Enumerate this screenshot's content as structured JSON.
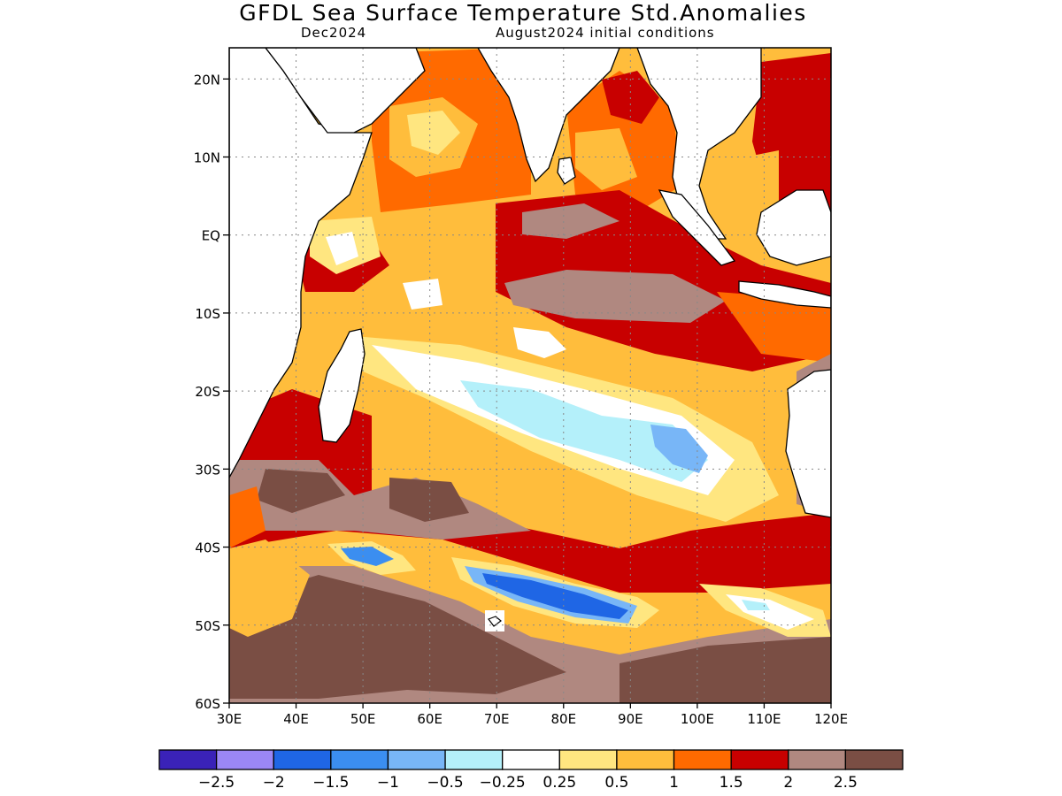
{
  "header": {
    "title": "GFDL Sea Surface Temperature Std.Anomalies",
    "valid_month": "Dec2024",
    "init": "August2024 initial conditions"
  },
  "map": {
    "lon_range": [
      30,
      120
    ],
    "lat_range": [
      -60,
      24
    ],
    "lat_ticks": [
      {
        "v": 20,
        "label": "20N"
      },
      {
        "v": 10,
        "label": "10N"
      },
      {
        "v": 0,
        "label": "EQ"
      },
      {
        "v": -10,
        "label": "10S"
      },
      {
        "v": -20,
        "label": "20S"
      },
      {
        "v": -30,
        "label": "30S"
      },
      {
        "v": -40,
        "label": "40S"
      },
      {
        "v": -50,
        "label": "50S"
      },
      {
        "v": -60,
        "label": "60S"
      }
    ],
    "lon_ticks": [
      {
        "v": 30,
        "label": "30E"
      },
      {
        "v": 40,
        "label": "40E"
      },
      {
        "v": 50,
        "label": "50E"
      },
      {
        "v": 60,
        "label": "60E"
      },
      {
        "v": 70,
        "label": "70E"
      },
      {
        "v": 80,
        "label": "80E"
      },
      {
        "v": 90,
        "label": "90E"
      },
      {
        "v": 100,
        "label": "100E"
      },
      {
        "v": 110,
        "label": "110E"
      },
      {
        "v": 120,
        "label": "120E"
      }
    ]
  },
  "colorbar": {
    "colors": [
      "#3a22b8",
      "#9b87f5",
      "#1f66e5",
      "#3b8ef0",
      "#78b6f7",
      "#b4f0fa",
      "#ffffff",
      "#ffe680",
      "#ffbd3c",
      "#ff6a00",
      "#c80000",
      "#b08880",
      "#7a4e44"
    ],
    "labels": [
      "−2.5",
      "−2",
      "−1.5",
      "−1",
      "−0.5",
      "−0.25",
      "0.25",
      "0.5",
      "1",
      "1.5",
      "2",
      "2.5"
    ]
  },
  "legend_colors": {
    "land": "#ffffff",
    "coast": "#000000"
  }
}
